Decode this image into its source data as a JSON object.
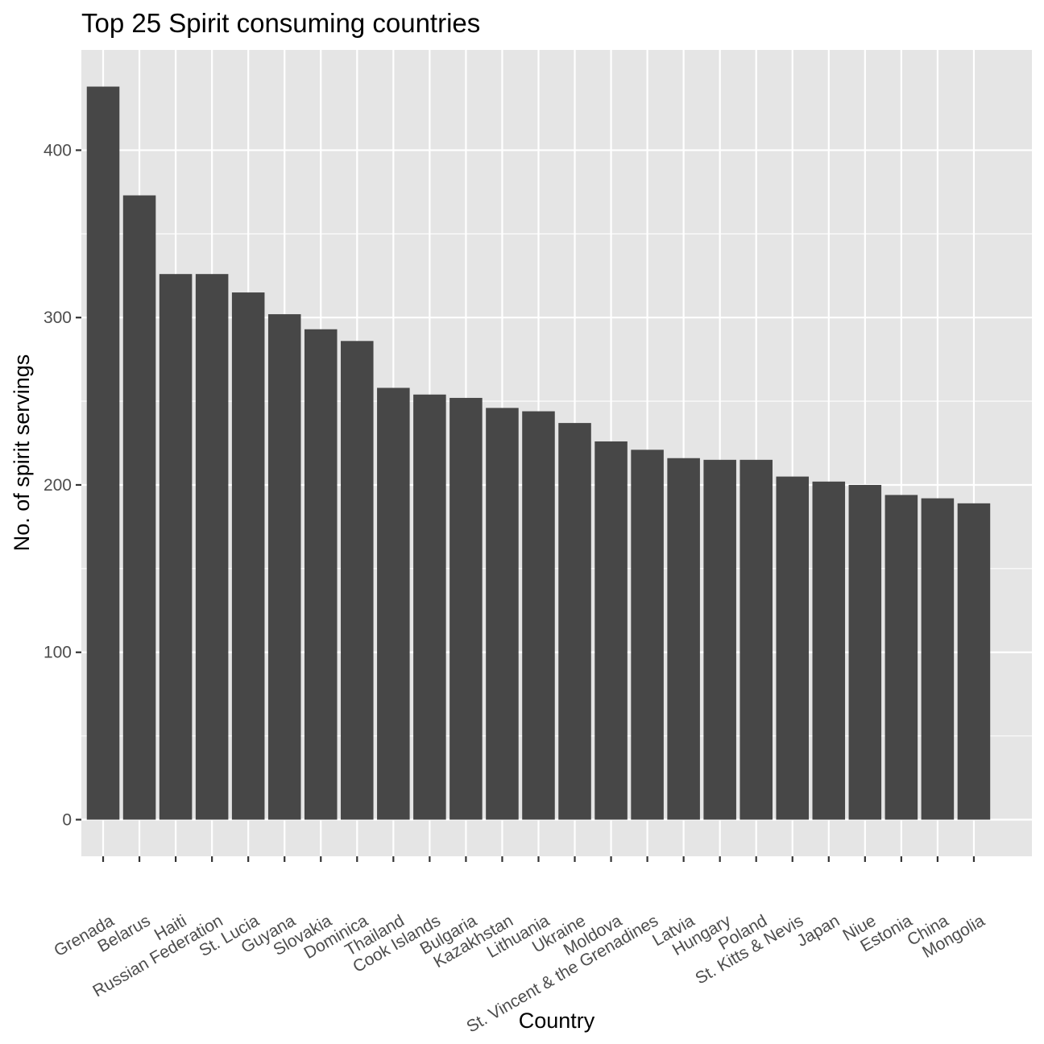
{
  "chart_data": {
    "type": "bar",
    "title": "Top 25 Spirit consuming countries",
    "xlabel": "Country",
    "ylabel": "No. of spirit servings",
    "categories": [
      "Grenada",
      "Belarus",
      "Haiti",
      "Russian Federation",
      "St. Lucia",
      "Guyana",
      "Slovakia",
      "Dominica",
      "Thailand",
      "Cook Islands",
      "Bulgaria",
      "Kazakhstan",
      "Lithuania",
      "Ukraine",
      "Moldova",
      "St. Vincent & the Grenadines",
      "Latvia",
      "Hungary",
      "Poland",
      "St. Kitts & Nevis",
      "Japan",
      "Niue",
      "Estonia",
      "China",
      "Mongolia"
    ],
    "values": [
      438,
      373,
      326,
      326,
      315,
      302,
      293,
      286,
      258,
      254,
      252,
      246,
      244,
      237,
      226,
      221,
      216,
      215,
      215,
      205,
      202,
      200,
      194,
      192,
      189
    ],
    "ylim": [
      -21.9,
      459.9
    ],
    "yticks": [
      0,
      100,
      200,
      300,
      400
    ],
    "grid": true,
    "legend": "none",
    "colors": {
      "bar": "#474747",
      "panel": "#e5e5e5",
      "grid": "#ffffff",
      "tick": "#333333"
    }
  }
}
